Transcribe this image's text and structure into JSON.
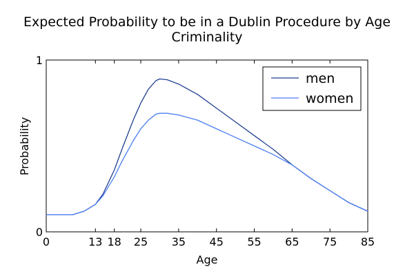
{
  "chart_data": {
    "type": "line",
    "title_line1": "Expected Probability to be in a Dublin Procedure by Age",
    "title_line2": "Criminality",
    "xlabel": "Age",
    "ylabel": "Probability",
    "xlim": [
      0,
      85
    ],
    "ylim": [
      0,
      1
    ],
    "x_ticks": [
      0,
      13,
      18,
      25,
      35,
      45,
      55,
      65,
      75,
      85
    ],
    "y_ticks": [
      0,
      1
    ],
    "grid": false,
    "legend_position": "top-right",
    "series": [
      {
        "name": "men",
        "color": "#1f3f8f",
        "points": [
          [
            0,
            0.1
          ],
          [
            7,
            0.1
          ],
          [
            10,
            0.12
          ],
          [
            13,
            0.16
          ],
          [
            15,
            0.22
          ],
          [
            18,
            0.36
          ],
          [
            20,
            0.48
          ],
          [
            23,
            0.65
          ],
          [
            25,
            0.75
          ],
          [
            27,
            0.83
          ],
          [
            29,
            0.88
          ],
          [
            30,
            0.89
          ],
          [
            32,
            0.885
          ],
          [
            35,
            0.86
          ],
          [
            40,
            0.8
          ],
          [
            45,
            0.72
          ],
          [
            50,
            0.64
          ],
          [
            55,
            0.56
          ],
          [
            60,
            0.48
          ],
          [
            65,
            0.39
          ],
          [
            70,
            0.31
          ],
          [
            75,
            0.24
          ],
          [
            80,
            0.17
          ],
          [
            85,
            0.12
          ]
        ]
      },
      {
        "name": "women",
        "color": "#4a7ef0",
        "points": [
          [
            0,
            0.1
          ],
          [
            7,
            0.1
          ],
          [
            10,
            0.12
          ],
          [
            13,
            0.16
          ],
          [
            15,
            0.21
          ],
          [
            18,
            0.32
          ],
          [
            20,
            0.41
          ],
          [
            23,
            0.53
          ],
          [
            25,
            0.6
          ],
          [
            27,
            0.65
          ],
          [
            29,
            0.685
          ],
          [
            30,
            0.69
          ],
          [
            32,
            0.69
          ],
          [
            35,
            0.68
          ],
          [
            40,
            0.65
          ],
          [
            45,
            0.6
          ],
          [
            50,
            0.55
          ],
          [
            55,
            0.5
          ],
          [
            60,
            0.45
          ],
          [
            65,
            0.39
          ],
          [
            70,
            0.31
          ],
          [
            75,
            0.24
          ],
          [
            80,
            0.17
          ],
          [
            85,
            0.12
          ]
        ]
      }
    ]
  }
}
